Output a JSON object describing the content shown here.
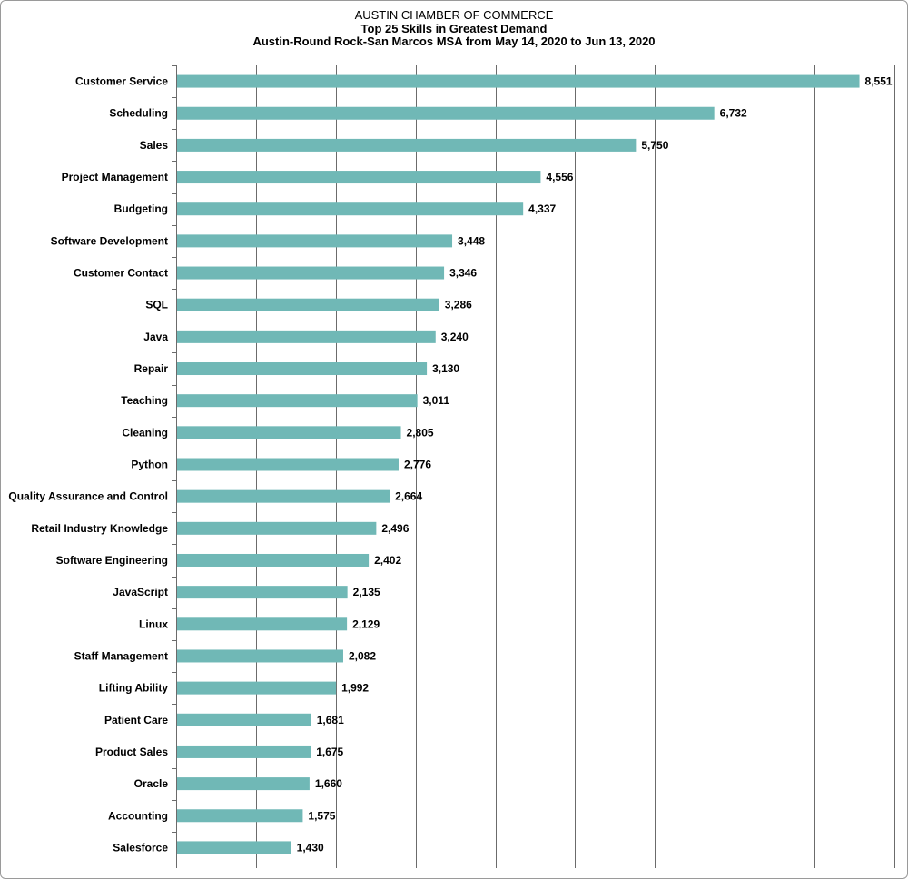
{
  "chart_data": {
    "type": "bar",
    "orientation": "horizontal",
    "title": "AUSTIN CHAMBER  OF COMMERCE",
    "subtitle": "Top 25  Skills in Greatest Demand",
    "subtitle2": "Austin-Round  Rock-San Marcos MSA from May 14, 2020 to Jun 13, 2020",
    "xlabel": "",
    "ylabel": "",
    "xlim": [
      0,
      9000
    ],
    "grid": true,
    "legend": "none",
    "bar_color": "#70b8b6",
    "categories": [
      "Customer Service",
      "Scheduling",
      "Sales",
      "Project Management",
      "Budgeting",
      "Software Development",
      "Customer Contact",
      "SQL",
      "Java",
      "Repair",
      "Teaching",
      "Cleaning",
      "Python",
      "Quality Assurance and Control",
      "Retail Industry Knowledge",
      "Software Engineering",
      "JavaScript",
      "Linux",
      "Staff Management",
      "Lifting Ability",
      "Patient Care",
      "Product Sales",
      "Oracle",
      "Accounting",
      "Salesforce"
    ],
    "values": [
      8551,
      6732,
      5750,
      4556,
      4337,
      3448,
      3346,
      3286,
      3240,
      3130,
      3011,
      2805,
      2776,
      2664,
      2496,
      2402,
      2135,
      2129,
      2082,
      1992,
      1681,
      1675,
      1660,
      1575,
      1430
    ],
    "value_labels": [
      "8,551",
      "6,732",
      "5,750",
      "4,556",
      "4,337",
      "3,448",
      "3,346",
      "3,286",
      "3,240",
      "3,130",
      "3,011",
      "2,805",
      "2,776",
      "2,664",
      "2,496",
      "2,402",
      "2,135",
      "2,129",
      "2,082",
      "1,992",
      "1,681",
      "1,675",
      "1,660",
      "1,575",
      "1,430"
    ]
  }
}
